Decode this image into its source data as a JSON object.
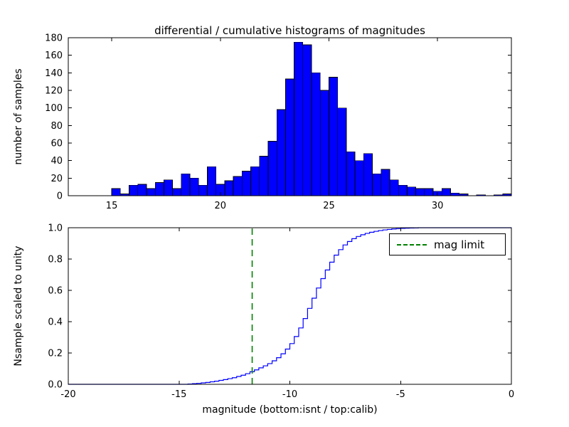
{
  "figure": {
    "background": "#ffffff"
  },
  "chart_data": [
    {
      "type": "bar",
      "kind": "histogram",
      "title": "differential / cumulative histograms of magnitudes",
      "xlabel": "",
      "ylabel": "number of samples",
      "bar_color": "#0000ff",
      "bar_edge_color": "#000000",
      "bin_start": 15.0,
      "bin_width": 0.4,
      "values": [
        8,
        2,
        12,
        13,
        8,
        15,
        18,
        8,
        25,
        20,
        12,
        33,
        13,
        17,
        22,
        28,
        33,
        45,
        62,
        98,
        133,
        175,
        172,
        140,
        120,
        135,
        100,
        50,
        40,
        48,
        25,
        30,
        18,
        12,
        10,
        8,
        8,
        5,
        8,
        3,
        2,
        0,
        1,
        0,
        1,
        2
      ],
      "xlim": [
        13.0,
        33.4
      ],
      "ylim": [
        0,
        180
      ],
      "xticks": [
        15,
        20,
        25,
        30
      ],
      "xtick_labels": [
        "15",
        "20",
        "25",
        "30"
      ],
      "yticks": [
        0,
        20,
        40,
        60,
        80,
        100,
        120,
        140,
        160,
        180
      ],
      "ytick_labels": [
        "0",
        "20",
        "40",
        "60",
        "80",
        "100",
        "120",
        "140",
        "160",
        "180"
      ],
      "grid": false
    },
    {
      "type": "line",
      "kind": "cumulative-step",
      "title": "",
      "xlabel": "magnitude (bottom:isnt / top:calib)",
      "ylabel": "Nsample scaled to unity",
      "line_color": "#0000ff",
      "points": [
        [
          -14.8,
          0
        ],
        [
          -14.6,
          0.002
        ],
        [
          -14.4,
          0.004
        ],
        [
          -14.2,
          0.006
        ],
        [
          -14.0,
          0.009
        ],
        [
          -13.8,
          0.012
        ],
        [
          -13.6,
          0.016
        ],
        [
          -13.4,
          0.02
        ],
        [
          -13.2,
          0.025
        ],
        [
          -13.0,
          0.03
        ],
        [
          -12.8,
          0.036
        ],
        [
          -12.6,
          0.042
        ],
        [
          -12.4,
          0.05
        ],
        [
          -12.2,
          0.058
        ],
        [
          -12.0,
          0.068
        ],
        [
          -11.8,
          0.08
        ],
        [
          -11.6,
          0.092
        ],
        [
          -11.4,
          0.105
        ],
        [
          -11.2,
          0.118
        ],
        [
          -11.0,
          0.132
        ],
        [
          -10.8,
          0.15
        ],
        [
          -10.6,
          0.17
        ],
        [
          -10.4,
          0.195
        ],
        [
          -10.2,
          0.225
        ],
        [
          -10.0,
          0.26
        ],
        [
          -9.8,
          0.305
        ],
        [
          -9.6,
          0.36
        ],
        [
          -9.4,
          0.42
        ],
        [
          -9.2,
          0.485
        ],
        [
          -9.0,
          0.55
        ],
        [
          -8.8,
          0.615
        ],
        [
          -8.6,
          0.675
        ],
        [
          -8.4,
          0.73
        ],
        [
          -8.2,
          0.78
        ],
        [
          -8.0,
          0.825
        ],
        [
          -7.8,
          0.86
        ],
        [
          -7.6,
          0.89
        ],
        [
          -7.4,
          0.912
        ],
        [
          -7.2,
          0.93
        ],
        [
          -7.0,
          0.944
        ],
        [
          -6.8,
          0.955
        ],
        [
          -6.6,
          0.964
        ],
        [
          -6.4,
          0.971
        ],
        [
          -6.2,
          0.977
        ],
        [
          -6.0,
          0.982
        ],
        [
          -5.8,
          0.986
        ],
        [
          -5.6,
          0.989
        ],
        [
          -5.4,
          0.992
        ],
        [
          -5.2,
          0.994
        ],
        [
          -5.0,
          0.996
        ],
        [
          -4.8,
          0.997
        ],
        [
          -4.6,
          0.998
        ],
        [
          -4.4,
          0.999
        ],
        [
          -4.2,
          1.0
        ]
      ],
      "xlim": [
        -20,
        0
      ],
      "ylim": [
        0,
        1.0
      ],
      "xticks": [
        -20,
        -15,
        -10,
        -5,
        0
      ],
      "xtick_labels": [
        "-20",
        "-15",
        "-10",
        "-5",
        "0"
      ],
      "yticks": [
        0.0,
        0.2,
        0.4,
        0.6,
        0.8,
        1.0
      ],
      "ytick_labels": [
        "0.0",
        "0.2",
        "0.4",
        "0.6",
        "0.8",
        "1.0"
      ],
      "grid": false,
      "annotations": {
        "mag_limit_x": -11.7,
        "color": "#008000",
        "line_style": "dashed",
        "legend_label": "mag limit",
        "legend_position": "upper right"
      }
    }
  ]
}
